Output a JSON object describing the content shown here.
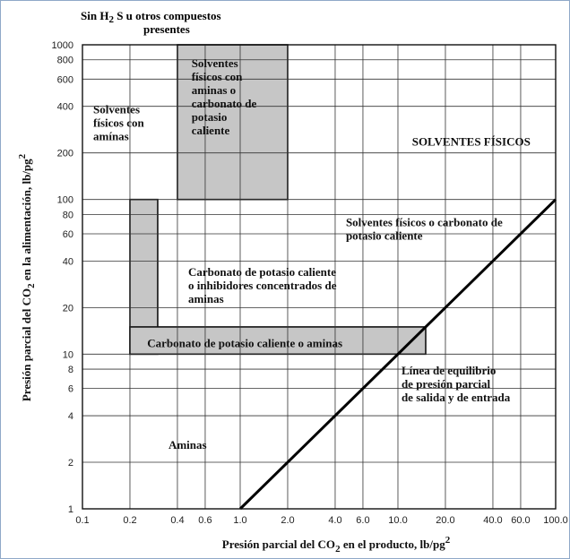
{
  "chart_data": {
    "type": "line",
    "scale": "log-log",
    "xlim": [
      1,
      100
    ],
    "ylim": [
      1,
      1000
    ],
    "title_line1": "Sin H",
    "title_sub": "2",
    "title_line1_rest": "S u otros compuestos",
    "title_line2": "presentes",
    "xlabel": {
      "pre": "Presión parcial del CO",
      "sub": "2",
      "mid": " en el producto, lb/pg",
      "sup": "2"
    },
    "ylabel": {
      "pre": "Presión parcial del CO",
      "sub": "2",
      "mid": " en la alimentación, lb/pg",
      "sup": "2"
    },
    "x_tick_labels": [
      {
        "v": 0.1,
        "t": "0.1"
      },
      {
        "v": 0.2,
        "t": "0.2"
      },
      {
        "v": 0.4,
        "t": "0.4"
      },
      {
        "v": 0.6,
        "t": "0.6"
      },
      {
        "v": 1.0,
        "t": "1.0"
      },
      {
        "v": 2.0,
        "t": "2.0"
      },
      {
        "v": 4.0,
        "t": "4.0"
      },
      {
        "v": 6.0,
        "t": "6.0"
      },
      {
        "v": 10.0,
        "t": "10.0"
      },
      {
        "v": 20.0,
        "t": "20.0"
      },
      {
        "v": 40.0,
        "t": "40.0"
      },
      {
        "v": 60.0,
        "t": "60.0"
      },
      {
        "v": 100.0,
        "t": "100.0"
      }
    ],
    "y_tick_labels": [
      {
        "v": 1,
        "t": "1"
      },
      {
        "v": 2,
        "t": "2"
      },
      {
        "v": 4,
        "t": "4"
      },
      {
        "v": 6,
        "t": "6"
      },
      {
        "v": 8,
        "t": "8"
      },
      {
        "v": 10,
        "t": "10"
      },
      {
        "v": 20,
        "t": "20"
      },
      {
        "v": 40,
        "t": "40"
      },
      {
        "v": 60,
        "t": "60"
      },
      {
        "v": 80,
        "t": "80"
      },
      {
        "v": 100,
        "t": "100"
      },
      {
        "v": 200,
        "t": "200"
      },
      {
        "v": 400,
        "t": "400"
      },
      {
        "v": 600,
        "t": "600"
      },
      {
        "v": 800,
        "t": "800"
      },
      {
        "v": 1000,
        "t": "1000"
      }
    ],
    "series": [
      {
        "name": "Línea de equilibrio de presión parcial de salida y de entrada",
        "x": [
          1.0,
          100.0
        ],
        "y": [
          1,
          100
        ]
      }
    ],
    "shaded_regions": [
      {
        "x": [
          0.4,
          2.0
        ],
        "y": [
          100,
          1000
        ]
      },
      {
        "x": [
          0.2,
          0.3
        ],
        "y": [
          10,
          100
        ]
      },
      {
        "x": [
          0.2,
          15.0
        ],
        "y": [
          10,
          15
        ]
      }
    ],
    "regions": [
      {
        "lines": [
          "Solventes",
          "físicos con",
          "amínas"
        ],
        "x": 0.1,
        "y": 430
      },
      {
        "lines": [
          "Solventes",
          "físicos con",
          "aminas o",
          "carbonato de",
          "potasio",
          "caliente"
        ],
        "x": 0.42,
        "y": 850
      },
      {
        "lines": [
          "SOLVENTES FÍSICOS"
        ],
        "x": 10.5,
        "y": 265
      },
      {
        "lines": [
          "Solventes físicos o carbonato de",
          "potasio caliente"
        ],
        "x": 4.0,
        "y": 80
      },
      {
        "lines": [
          "Carbonato de potasio caliente",
          "o inhibidores concentrados de",
          "aminas"
        ],
        "x": 0.4,
        "y": 38
      },
      {
        "lines": [
          "Carbonato de potasio caliente o aminas"
        ],
        "x": 0.22,
        "y": 13.2
      },
      {
        "lines": [
          "Línea de equilibrio",
          "de presión parcial",
          "de salida y de entrada"
        ],
        "x": 9.0,
        "y": 8.8
      },
      {
        "lines": [
          "Aminas"
        ],
        "x": 0.3,
        "y": 2.9
      }
    ]
  }
}
